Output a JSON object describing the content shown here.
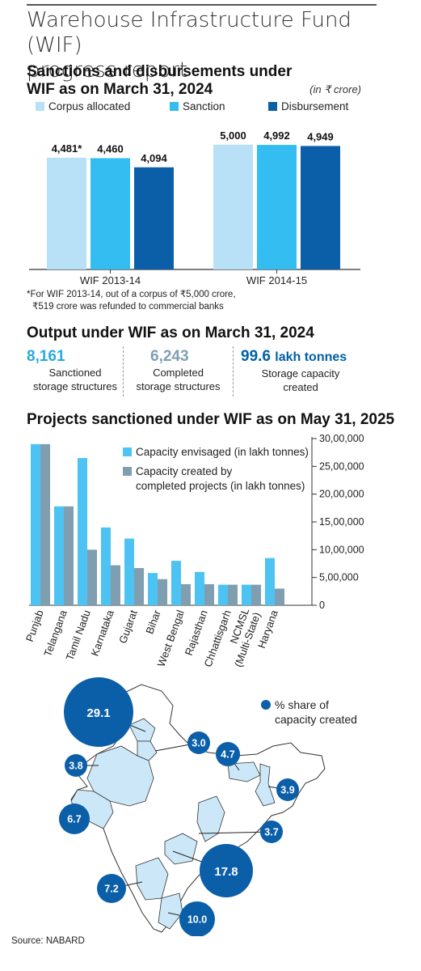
{
  "header": {
    "title_line1": "Warehouse Infrastructure Fund (WIF)",
    "title_line2": "progress report"
  },
  "section1": {
    "heading_line1": "Sanctions and disbursements under",
    "heading_line2": "WIF as on March 31, 2024",
    "unit": "(in ₹ crore)",
    "footnote_line1": "*For WIF 2013-14, out of a corpus of ₹5,000 crore,",
    "footnote_line2": "₹519 crore was refunded to commercial banks"
  },
  "section2": {
    "heading": "Output under WIF as on March 31, 2024",
    "stats": [
      {
        "value": "8,161",
        "label_line1": "Sanctioned",
        "label_line2": "storage structures",
        "color": "#29a9e0"
      },
      {
        "value": "6,243",
        "label_line1": "Completed",
        "label_line2": "storage structures",
        "color": "#7f9fb3"
      },
      {
        "value": "99.6",
        "unit": "lakh tonnes",
        "label_line1": "Storage capacity",
        "label_line2": "created",
        "color": "#0060a8"
      }
    ]
  },
  "section3": {
    "heading": "Projects sanctioned under WIF as on May 31, 2025"
  },
  "map": {
    "legend": "% share of capacity created",
    "legend_line1": "% share of",
    "legend_line2": "capacity created",
    "bubbles": [
      {
        "value": "29.1"
      },
      {
        "value": "3.0"
      },
      {
        "value": "4.7"
      },
      {
        "value": "3.8"
      },
      {
        "value": "3.9"
      },
      {
        "value": "6.7"
      },
      {
        "value": "3.7"
      },
      {
        "value": "17.8"
      },
      {
        "value": "7.2"
      },
      {
        "value": "10.0"
      }
    ]
  },
  "source": "Source: NABARD",
  "colors": {
    "corpus": "#b8e0f7",
    "sanction": "#33bdf0",
    "disbursement": "#0b5fa8",
    "envisaged": "#4cc3f2",
    "created": "#7f9fb1",
    "map_fill": "#cce8f8",
    "bubble": "#0b5fa8"
  },
  "chart_data": [
    {
      "type": "bar",
      "title": "Sanctions and disbursements under WIF as on March 31, 2024",
      "categories": [
        "WIF 2013-14",
        "WIF 2014-15"
      ],
      "series": [
        {
          "name": "Corpus allocated",
          "values": [
            4481,
            5000
          ],
          "labels": [
            "4,481*",
            "5,000"
          ]
        },
        {
          "name": "Sanction",
          "values": [
            4460,
            4992
          ],
          "labels": [
            "4,460",
            "4,992"
          ]
        },
        {
          "name": "Disbursement",
          "values": [
            4094,
            4949
          ],
          "labels": [
            "4,094",
            "4,949"
          ]
        }
      ],
      "ylim": [
        0,
        6000
      ],
      "grid": false,
      "legend": "top"
    },
    {
      "type": "bar",
      "title": "Projects sanctioned under WIF as on May 31, 2025",
      "categories": [
        "Punjab",
        "Telangana",
        "Tamil Nadu",
        "Karnataka",
        "Gujarat",
        "Bihar",
        "West Bengal",
        "Rajasthan",
        "Chhattisgarh",
        "NCMSL (Multi-State)",
        "Haryana"
      ],
      "series": [
        {
          "name": "Capacity envisaged (in lakh tonnes)",
          "values": [
            2900000,
            1780000,
            2650000,
            1400000,
            1200000,
            580000,
            800000,
            600000,
            370000,
            370000,
            850000
          ]
        },
        {
          "name": "Capacity created by completed projects (in lakh tonnes)",
          "values": [
            2900000,
            1780000,
            1000000,
            720000,
            670000,
            470000,
            380000,
            380000,
            370000,
            370000,
            300000
          ]
        }
      ],
      "ylim": [
        0,
        3000000
      ],
      "yticks": [
        "0",
        "5,00,000",
        "10,00,000",
        "15,00,000",
        "20,00,000",
        "25,00,000",
        "30,00,000"
      ],
      "ytick_values": [
        0,
        500000,
        1000000,
        1500000,
        2000000,
        2500000,
        3000000
      ],
      "grid": false,
      "legend": "top-right"
    }
  ]
}
